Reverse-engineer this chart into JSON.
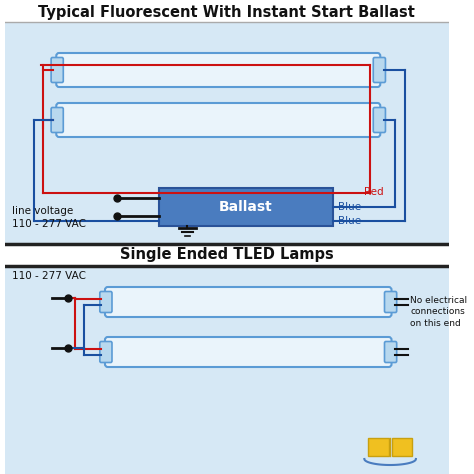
{
  "title_top": "Typical Fluorescent With Instant Start Ballast",
  "title_bottom": "Single Ended TLED Lamps",
  "bg_top": "#d6e8f5",
  "bg_bottom": "#d6e8f5",
  "bg_white": "#ffffff",
  "lamp_color": "#eaf4fb",
  "lamp_stroke": "#5b9bd5",
  "cap_color": "#b8d8ee",
  "ballast_color": "#4a7cbf",
  "ballast_text": "Ballast",
  "red": "#cc1111",
  "blue": "#1a4fa0",
  "black": "#111111",
  "label_red": "Red",
  "label_blue1": "Blue",
  "label_blue2": "Blue",
  "line_voltage_label": "line voltage\n110 - 277 VAC",
  "line_voltage_label2": "110 - 277 VAC",
  "no_conn_label": "No electrical\nconnections\non this end",
  "title_fontsize": 10.5,
  "body_fontsize": 8.5,
  "small_fontsize": 7.5,
  "logo_yellow": "#f0c020",
  "logo_blue_arc": "#4a7cbf"
}
